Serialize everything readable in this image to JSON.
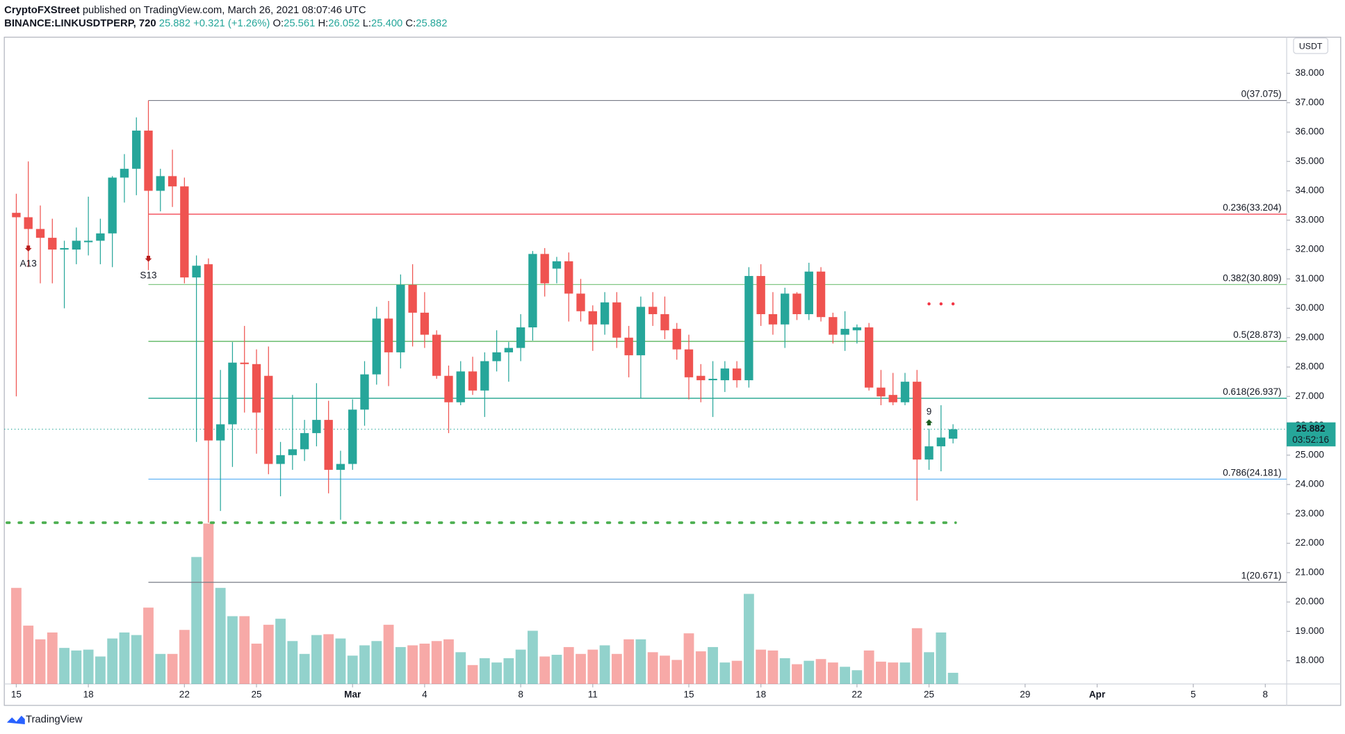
{
  "header": {
    "author": "CryptoFXStreet",
    "published": "published on TradingView.com, March 26, 2021 08:07:46 UTC",
    "symbol": "BINANCE:LINKUSDTPERP, 720",
    "last": "25.882",
    "change": "+0.321 (+1.26%)",
    "ohlc": [
      {
        "key": "O:",
        "value": "25.561"
      },
      {
        "key": "H:",
        "value": "26.052"
      },
      {
        "key": "L:",
        "value": "25.400"
      },
      {
        "key": "C:",
        "value": "25.882"
      }
    ]
  },
  "footer": "TradingView",
  "chart_data": {
    "type": "candlestick",
    "currency": "USDT",
    "countdown": "03:52:16",
    "up_color": "#26a69a",
    "down_color": "#ef5350",
    "xlim": [
      14.5,
      67.89
    ],
    "ylim": [
      17.21,
      39.23
    ],
    "volume_lim": [
      0,
      200
    ],
    "xticks": [
      15,
      18,
      22,
      25,
      {
        "value": 29,
        "label": "Mar"
      },
      {
        "value": 32,
        "label": "4"
      },
      {
        "value": 36,
        "label": "8"
      },
      {
        "value": 39,
        "label": "11"
      },
      {
        "value": 43,
        "label": "15"
      },
      {
        "value": 46,
        "label": "18"
      },
      {
        "value": 50,
        "label": "22"
      },
      {
        "value": 53,
        "label": "25"
      },
      {
        "value": 57,
        "label": "29"
      },
      {
        "value": 60,
        "label": "Apr"
      },
      {
        "value": 64,
        "label": "5"
      },
      {
        "value": 67,
        "label": "8"
      }
    ],
    "yticks": [
      {
        "value": 18,
        "label": "18.000"
      },
      {
        "value": 19,
        "label": "19.000"
      },
      {
        "value": 20,
        "label": "20.000"
      },
      {
        "value": 21,
        "label": "21.000"
      },
      {
        "value": 22,
        "label": "22.000"
      },
      {
        "value": 23,
        "label": "23.000"
      },
      {
        "value": 24,
        "label": "24.000"
      },
      {
        "value": 25,
        "label": "25.000"
      },
      {
        "value": 26,
        "label": "26.000"
      },
      {
        "value": 27,
        "label": "27.000"
      },
      {
        "value": 28,
        "label": "28.000"
      },
      {
        "value": 29,
        "label": "29.000"
      },
      {
        "value": 30,
        "label": "30.000"
      },
      {
        "value": 31,
        "label": "31.000"
      },
      {
        "value": 32,
        "label": "32.000"
      },
      {
        "value": 33,
        "label": "33.000"
      },
      {
        "value": 34,
        "label": "34.000"
      },
      {
        "value": 35,
        "label": "35.000"
      },
      {
        "value": 36,
        "label": "36.000"
      },
      {
        "value": 37,
        "label": "37.000"
      },
      {
        "value": 38,
        "label": "38.000"
      }
    ],
    "candles": {
      "x": [
        15,
        15.5,
        16,
        16.5,
        17,
        17.5,
        18,
        18.5,
        19,
        19.5,
        20,
        20.5,
        21,
        21.5,
        22,
        22.5,
        23,
        23.5,
        24,
        24.5,
        25,
        25.5,
        26,
        26.5,
        27,
        27.5,
        28,
        28.5,
        29,
        29.5,
        30,
        30.5,
        31,
        31.5,
        32,
        32.5,
        33,
        33.5,
        34,
        34.5,
        35,
        35.5,
        36,
        36.5,
        37,
        37.5,
        38,
        38.5,
        39,
        39.5,
        40,
        40.5,
        41,
        41.5,
        42,
        42.5,
        43,
        43.5,
        44,
        44.5,
        45,
        45.5,
        46,
        46.5,
        47,
        47.5,
        48,
        48.5,
        49,
        49.5,
        50,
        50.5,
        51,
        51.5,
        52,
        52.5,
        53,
        53.5,
        54
      ],
      "open": [
        33.25,
        33.1,
        32.7,
        32.4,
        32.0,
        32.0,
        32.25,
        32.3,
        32.55,
        34.45,
        34.75,
        36.05,
        34.0,
        34.5,
        34.15,
        31.05,
        31.5,
        25.5,
        26.05,
        28.15,
        28.1,
        27.7,
        24.7,
        25.0,
        25.2,
        25.75,
        26.2,
        24.5,
        24.7,
        26.55,
        27.75,
        29.65,
        28.5,
        30.8,
        29.85,
        29.1,
        27.7,
        26.8,
        27.85,
        27.2,
        28.2,
        28.5,
        28.65,
        29.35,
        31.85,
        31.35,
        31.6,
        30.5,
        29.9,
        29.45,
        30.2,
        29.0,
        28.4,
        30.05,
        29.8,
        29.3,
        28.6,
        27.7,
        27.55,
        27.55,
        27.95,
        27.55,
        31.1,
        29.8,
        29.45,
        30.5,
        29.8,
        31.25,
        29.7,
        29.1,
        29.25,
        29.35,
        27.3,
        27.05,
        26.8,
        27.5,
        24.85,
        25.3,
        25.561
      ],
      "high": [
        33.9,
        35.0,
        33.5,
        33.05,
        32.3,
        32.75,
        33.8,
        33.05,
        34.5,
        35.25,
        36.5,
        37.075,
        34.75,
        35.4,
        34.45,
        31.8,
        31.7,
        27.9,
        28.85,
        29.4,
        28.6,
        28.7,
        25.45,
        27.05,
        26.2,
        27.45,
        26.85,
        25.15,
        26.9,
        28.2,
        30.05,
        30.25,
        31.15,
        31.5,
        30.55,
        29.25,
        28.05,
        28.2,
        28.35,
        28.5,
        29.25,
        28.85,
        29.8,
        31.95,
        32.05,
        31.75,
        31.9,
        31.0,
        30.1,
        30.55,
        30.55,
        29.4,
        30.4,
        30.55,
        30.4,
        29.5,
        29.1,
        28.1,
        28.2,
        28.2,
        28.2,
        31.4,
        31.5,
        30.55,
        30.7,
        30.55,
        31.55,
        31.4,
        29.85,
        29.9,
        29.45,
        29.5,
        27.9,
        27.8,
        27.8,
        27.9,
        25.9,
        26.7,
        26.052
      ],
      "low": [
        27.0,
        31.4,
        30.85,
        30.85,
        30.0,
        31.5,
        31.8,
        31.5,
        31.4,
        33.6,
        33.85,
        31.3,
        33.3,
        33.45,
        30.85,
        25.45,
        22.7,
        23.1,
        24.6,
        26.45,
        25.05,
        24.35,
        23.6,
        24.5,
        24.8,
        25.3,
        23.7,
        22.8,
        24.5,
        26.0,
        27.4,
        27.35,
        27.95,
        28.7,
        28.65,
        27.6,
        25.75,
        26.7,
        27.05,
        26.3,
        27.85,
        27.5,
        28.2,
        28.9,
        30.4,
        30.85,
        29.55,
        29.55,
        28.55,
        29.1,
        28.65,
        27.65,
        26.95,
        29.4,
        28.95,
        28.25,
        26.9,
        26.8,
        26.3,
        27.15,
        27.3,
        27.3,
        29.4,
        29.1,
        28.65,
        29.6,
        29.6,
        29.55,
        28.8,
        28.55,
        28.8,
        27.2,
        26.7,
        26.7,
        26.7,
        23.45,
        24.5,
        24.45,
        25.4
      ],
      "close": [
        33.1,
        32.7,
        32.4,
        32.0,
        32.05,
        32.3,
        32.3,
        32.55,
        34.45,
        34.75,
        36.05,
        34.0,
        34.5,
        34.15,
        31.05,
        31.45,
        25.5,
        26.05,
        28.15,
        28.1,
        26.45,
        24.7,
        25.0,
        25.2,
        25.75,
        26.2,
        24.5,
        24.7,
        26.55,
        27.75,
        29.65,
        28.5,
        30.8,
        29.85,
        29.1,
        27.7,
        26.8,
        27.85,
        27.2,
        28.2,
        28.5,
        28.65,
        29.35,
        31.85,
        30.85,
        31.6,
        30.5,
        29.9,
        29.45,
        30.2,
        29.0,
        28.4,
        30.05,
        29.8,
        29.25,
        28.6,
        27.65,
        27.55,
        27.6,
        27.95,
        27.55,
        31.1,
        29.8,
        29.45,
        30.5,
        29.8,
        31.25,
        29.7,
        29.1,
        29.3,
        29.35,
        27.3,
        27.0,
        26.8,
        27.5,
        24.85,
        25.3,
        25.6,
        25.882
      ],
      "volume": [
        112,
        68,
        52,
        60,
        42,
        39,
        40,
        32,
        53,
        60,
        57,
        89,
        35,
        35,
        63,
        148,
        187,
        112,
        79,
        79,
        47,
        69,
        76,
        50,
        35,
        57,
        58,
        53,
        33,
        45,
        50,
        69,
        43,
        45,
        47,
        50,
        52,
        37,
        22,
        30,
        25,
        30,
        40,
        62,
        32,
        34,
        43,
        35,
        40,
        45,
        35,
        52,
        52,
        37,
        33,
        28,
        59,
        38,
        43,
        25,
        27,
        105,
        40,
        39,
        30,
        23,
        27,
        29,
        25,
        20,
        16,
        39,
        26,
        25,
        25,
        65,
        37,
        60,
        13
      ]
    },
    "fib": {
      "x_start": 20.5,
      "levels": [
        {
          "price": 37.075,
          "label": "0(37.075)",
          "color": "#787b86"
        },
        {
          "price": 33.204,
          "label": "0.236(33.204)",
          "color": "#f23645"
        },
        {
          "price": 30.809,
          "label": "0.382(30.809)",
          "color": "#81c784"
        },
        {
          "price": 28.873,
          "label": "0.5(28.873)",
          "color": "#4caf50"
        },
        {
          "price": 26.937,
          "label": "0.618(26.937)",
          "color": "#089981"
        },
        {
          "price": 24.181,
          "label": "0.786(24.181)",
          "color": "#64b5f6"
        },
        {
          "price": 20.671,
          "label": "1(20.671)",
          "color": "#787b86"
        }
      ]
    },
    "support": {
      "price": 22.7,
      "x_end": 54,
      "color": "#4caf50"
    },
    "resistance_dots": {
      "price": 30.15,
      "x": [
        53,
        53.5,
        54
      ],
      "color": "#f23645"
    },
    "markers": [
      {
        "x": 15.5,
        "price": 31.5,
        "label": "A13",
        "color": "#42a5f5",
        "arrow_price": 32.05,
        "arrow": "down"
      },
      {
        "x": 20.5,
        "price": 31.1,
        "label": "S13",
        "color": "#ff9800",
        "arrow_price": 31.7,
        "arrow": "down"
      },
      {
        "x": 53,
        "price": 26.47,
        "label": "9",
        "color": "#ef5350",
        "arrow_price": 26.1,
        "arrow": "up"
      }
    ]
  }
}
